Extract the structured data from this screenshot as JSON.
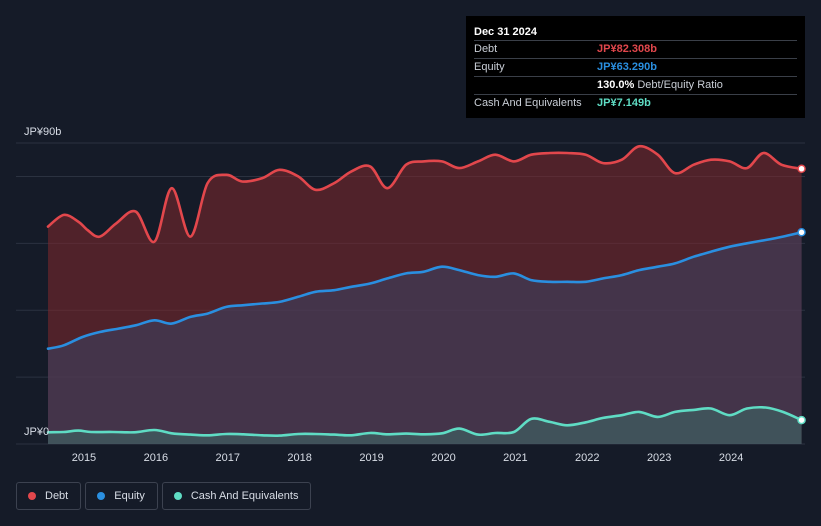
{
  "chart_data": {
    "type": "area",
    "title": "",
    "xlabel": "",
    "ylabel": "",
    "y_top_label": "JP¥90b",
    "y_bottom_label": "JP¥0",
    "ylim": [
      0,
      90
    ],
    "x_range": [
      2014.5,
      2025.0
    ],
    "x_tick_labels": [
      "2015",
      "2016",
      "2017",
      "2018",
      "2019",
      "2020",
      "2021",
      "2022",
      "2023",
      "2024"
    ],
    "x_tick_values": [
      2015,
      2016,
      2017,
      2018,
      2019,
      2020,
      2021,
      2022,
      2023,
      2024
    ],
    "series": [
      {
        "name": "Debt",
        "color": "#e2474c",
        "points": [
          [
            2014.5,
            65
          ],
          [
            2014.72,
            68.5
          ],
          [
            2014.92,
            66.5
          ],
          [
            2015.05,
            64
          ],
          [
            2015.22,
            62
          ],
          [
            2015.45,
            66
          ],
          [
            2015.72,
            69.5
          ],
          [
            2015.98,
            60.5
          ],
          [
            2016.22,
            76.5
          ],
          [
            2016.48,
            62
          ],
          [
            2016.72,
            78
          ],
          [
            2016.98,
            80.5
          ],
          [
            2017.2,
            78.5
          ],
          [
            2017.48,
            79.5
          ],
          [
            2017.72,
            82
          ],
          [
            2017.98,
            80
          ],
          [
            2018.22,
            76
          ],
          [
            2018.48,
            78
          ],
          [
            2018.72,
            81.5
          ],
          [
            2018.98,
            83
          ],
          [
            2019.22,
            76.5
          ],
          [
            2019.48,
            83.5
          ],
          [
            2019.72,
            84.5
          ],
          [
            2019.98,
            84.5
          ],
          [
            2020.22,
            82.5
          ],
          [
            2020.48,
            84.5
          ],
          [
            2020.72,
            86.5
          ],
          [
            2020.98,
            84.5
          ],
          [
            2021.22,
            86.5
          ],
          [
            2021.48,
            87
          ],
          [
            2021.72,
            87
          ],
          [
            2021.98,
            86.5
          ],
          [
            2022.22,
            84
          ],
          [
            2022.48,
            85
          ],
          [
            2022.72,
            89
          ],
          [
            2022.98,
            86.5
          ],
          [
            2023.22,
            81
          ],
          [
            2023.48,
            83.5
          ],
          [
            2023.72,
            85
          ],
          [
            2023.98,
            84.5
          ],
          [
            2024.22,
            82.5
          ],
          [
            2024.45,
            87
          ],
          [
            2024.7,
            83.5
          ],
          [
            2024.98,
            82.3
          ]
        ]
      },
      {
        "name": "Equity",
        "color": "#2a8fe0",
        "points": [
          [
            2014.5,
            28.5
          ],
          [
            2014.72,
            29.5
          ],
          [
            2014.98,
            32
          ],
          [
            2015.22,
            33.5
          ],
          [
            2015.48,
            34.5
          ],
          [
            2015.72,
            35.5
          ],
          [
            2015.98,
            37
          ],
          [
            2016.22,
            36
          ],
          [
            2016.48,
            38
          ],
          [
            2016.72,
            39
          ],
          [
            2016.98,
            41
          ],
          [
            2017.22,
            41.5
          ],
          [
            2017.48,
            42
          ],
          [
            2017.72,
            42.5
          ],
          [
            2017.98,
            44
          ],
          [
            2018.22,
            45.5
          ],
          [
            2018.48,
            46
          ],
          [
            2018.72,
            47
          ],
          [
            2018.98,
            48
          ],
          [
            2019.22,
            49.5
          ],
          [
            2019.48,
            51
          ],
          [
            2019.72,
            51.5
          ],
          [
            2019.98,
            53
          ],
          [
            2020.22,
            52
          ],
          [
            2020.48,
            50.5
          ],
          [
            2020.72,
            50
          ],
          [
            2020.98,
            51
          ],
          [
            2021.22,
            49
          ],
          [
            2021.48,
            48.5
          ],
          [
            2021.72,
            48.5
          ],
          [
            2021.98,
            48.5
          ],
          [
            2022.22,
            49.5
          ],
          [
            2022.48,
            50.5
          ],
          [
            2022.72,
            52
          ],
          [
            2022.98,
            53
          ],
          [
            2023.22,
            54
          ],
          [
            2023.48,
            56
          ],
          [
            2023.72,
            57.5
          ],
          [
            2023.98,
            59
          ],
          [
            2024.22,
            60
          ],
          [
            2024.48,
            61
          ],
          [
            2024.72,
            62
          ],
          [
            2024.98,
            63.3
          ]
        ]
      },
      {
        "name": "Cash And Equivalents",
        "color": "#5fdcc4",
        "points": [
          [
            2014.5,
            3.5
          ],
          [
            2014.72,
            3.6
          ],
          [
            2014.92,
            4.0
          ],
          [
            2015.1,
            3.6
          ],
          [
            2015.4,
            3.6
          ],
          [
            2015.7,
            3.5
          ],
          [
            2015.98,
            4.2
          ],
          [
            2016.22,
            3.2
          ],
          [
            2016.48,
            2.8
          ],
          [
            2016.72,
            2.6
          ],
          [
            2016.98,
            3.0
          ],
          [
            2017.22,
            2.9
          ],
          [
            2017.48,
            2.6
          ],
          [
            2017.72,
            2.5
          ],
          [
            2017.98,
            3.0
          ],
          [
            2018.22,
            3.0
          ],
          [
            2018.48,
            2.8
          ],
          [
            2018.72,
            2.6
          ],
          [
            2018.98,
            3.3
          ],
          [
            2019.22,
            2.9
          ],
          [
            2019.48,
            3.1
          ],
          [
            2019.72,
            2.9
          ],
          [
            2019.98,
            3.2
          ],
          [
            2020.22,
            4.6
          ],
          [
            2020.48,
            2.8
          ],
          [
            2020.72,
            3.3
          ],
          [
            2020.98,
            3.6
          ],
          [
            2021.22,
            7.5
          ],
          [
            2021.48,
            6.6
          ],
          [
            2021.72,
            5.6
          ],
          [
            2021.98,
            6.5
          ],
          [
            2022.22,
            7.8
          ],
          [
            2022.48,
            8.6
          ],
          [
            2022.72,
            9.6
          ],
          [
            2022.98,
            8.1
          ],
          [
            2023.22,
            9.6
          ],
          [
            2023.48,
            10.2
          ],
          [
            2023.72,
            10.6
          ],
          [
            2023.98,
            8.6
          ],
          [
            2024.22,
            10.6
          ],
          [
            2024.48,
            10.9
          ],
          [
            2024.72,
            9.6
          ],
          [
            2024.98,
            7.15
          ]
        ]
      }
    ]
  },
  "tooltip": {
    "date": "Dec 31 2024",
    "rows": [
      {
        "label": "Debt",
        "value": "JP¥82.308b",
        "color": "#e2474c"
      },
      {
        "label": "Equity",
        "value": "JP¥63.290b",
        "color": "#2a8fe0"
      },
      {
        "ratio_value": "130.0%",
        "ratio_label": "Debt/Equity Ratio"
      },
      {
        "label": "Cash And Equivalents",
        "value": "JP¥7.149b",
        "color": "#5fdcc4"
      }
    ]
  },
  "legend": [
    {
      "label": "Debt",
      "color": "#e2474c"
    },
    {
      "label": "Equity",
      "color": "#2a8fe0"
    },
    {
      "label": "Cash And Equivalents",
      "color": "#5fdcc4"
    }
  ]
}
